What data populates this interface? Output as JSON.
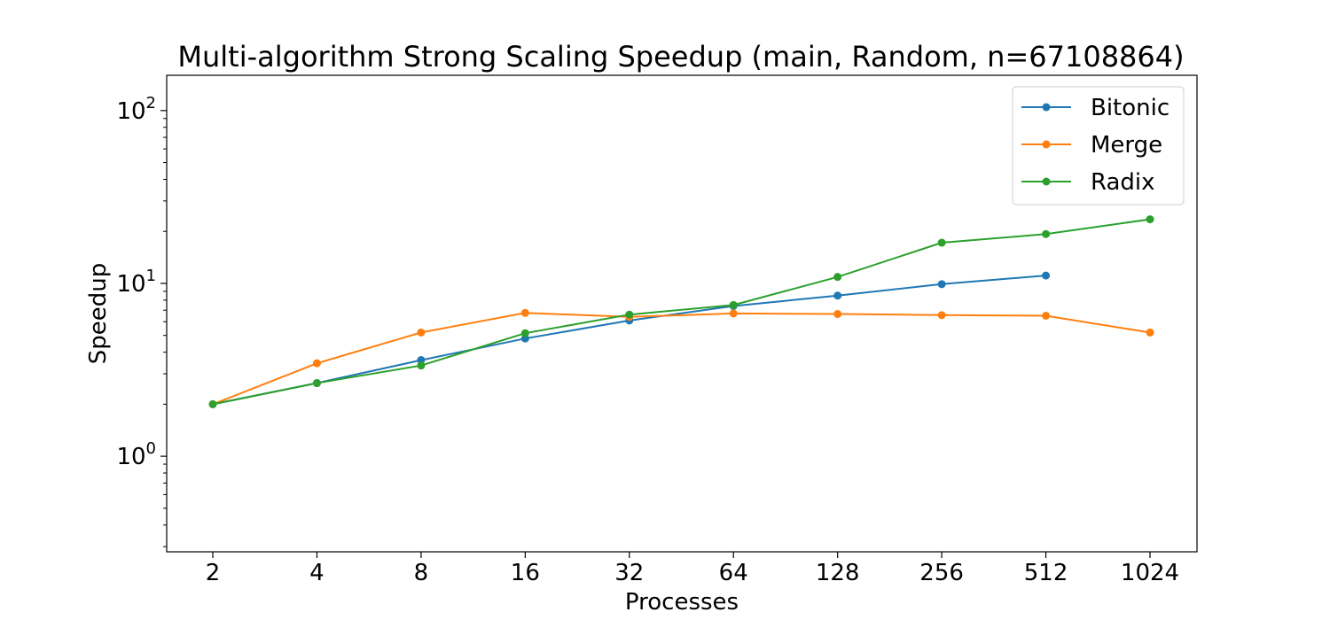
{
  "chart_data": {
    "type": "line",
    "title": "Multi-algorithm Strong Scaling Speedup (main, Random, n=67108864)",
    "xlabel": "Processes",
    "ylabel": "Speedup",
    "x_scale": "categorical-log2",
    "y_scale": "log",
    "ylim": [
      0.28,
      160
    ],
    "categories": [
      "2",
      "4",
      "8",
      "16",
      "32",
      "64",
      "128",
      "256",
      "512",
      "1024"
    ],
    "y_ticks": [
      {
        "value": 1,
        "base": "10",
        "exp": "0"
      },
      {
        "value": 10,
        "base": "10",
        "exp": "1"
      },
      {
        "value": 100,
        "base": "10",
        "exp": "2"
      }
    ],
    "grid": false,
    "legend": "top-right",
    "series": [
      {
        "name": "Bitonic",
        "color": "#1f77b4",
        "values": [
          2.0,
          2.65,
          3.6,
          4.8,
          6.1,
          7.4,
          8.5,
          9.9,
          11.1,
          null
        ]
      },
      {
        "name": "Merge",
        "color": "#ff7f0e",
        "values": [
          2.0,
          3.45,
          5.2,
          6.75,
          6.4,
          6.7,
          6.65,
          6.55,
          6.5,
          5.2
        ]
      },
      {
        "name": "Radix",
        "color": "#2ca02c",
        "values": [
          2.0,
          2.65,
          3.35,
          5.15,
          6.6,
          7.5,
          10.9,
          17.2,
          19.3,
          23.5
        ]
      }
    ]
  }
}
